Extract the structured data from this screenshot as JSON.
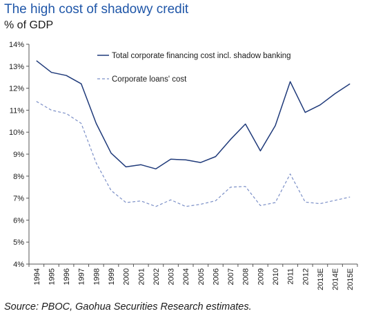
{
  "title": "The high cost of shadowy credit",
  "subtitle": "% of GDP",
  "source": "Source: PBOC, Gaohua Securities Research estimates.",
  "colors": {
    "title": "#1f56a8",
    "series1": "#1f3a7a",
    "series2": "#7b8fc7",
    "axis": "#555555"
  },
  "chart_data": {
    "type": "line",
    "x": [
      "1994",
      "1995",
      "1996",
      "1997",
      "1998",
      "1999",
      "2000",
      "2001",
      "2002",
      "2003",
      "2004",
      "2005",
      "2006",
      "2007",
      "2008",
      "2009",
      "2010",
      "2011",
      "2012",
      "2013E",
      "2014E",
      "2015E"
    ],
    "ylim": [
      4,
      14
    ],
    "y_ticks": [
      "4%",
      "5%",
      "6%",
      "7%",
      "8%",
      "9%",
      "10%",
      "11%",
      "12%",
      "13%",
      "14%"
    ],
    "grid": false,
    "legend_position": "top-right",
    "series": [
      {
        "name": "Total corporate financing cost incl. shadow banking",
        "style": "solid",
        "values": [
          13.25,
          12.72,
          12.58,
          12.2,
          10.4,
          9.05,
          8.42,
          8.52,
          8.33,
          8.77,
          8.74,
          8.62,
          8.89,
          9.67,
          10.37,
          9.15,
          10.3,
          12.3,
          10.9,
          11.24,
          11.75,
          12.2
        ]
      },
      {
        "name": "Corporate loans' cost",
        "style": "dashed",
        "values": [
          11.4,
          11.0,
          10.85,
          10.4,
          8.6,
          7.35,
          6.8,
          6.87,
          6.62,
          6.92,
          6.62,
          6.72,
          6.88,
          7.5,
          7.53,
          6.66,
          6.8,
          8.1,
          6.82,
          6.75,
          6.9,
          7.05
        ]
      }
    ]
  }
}
